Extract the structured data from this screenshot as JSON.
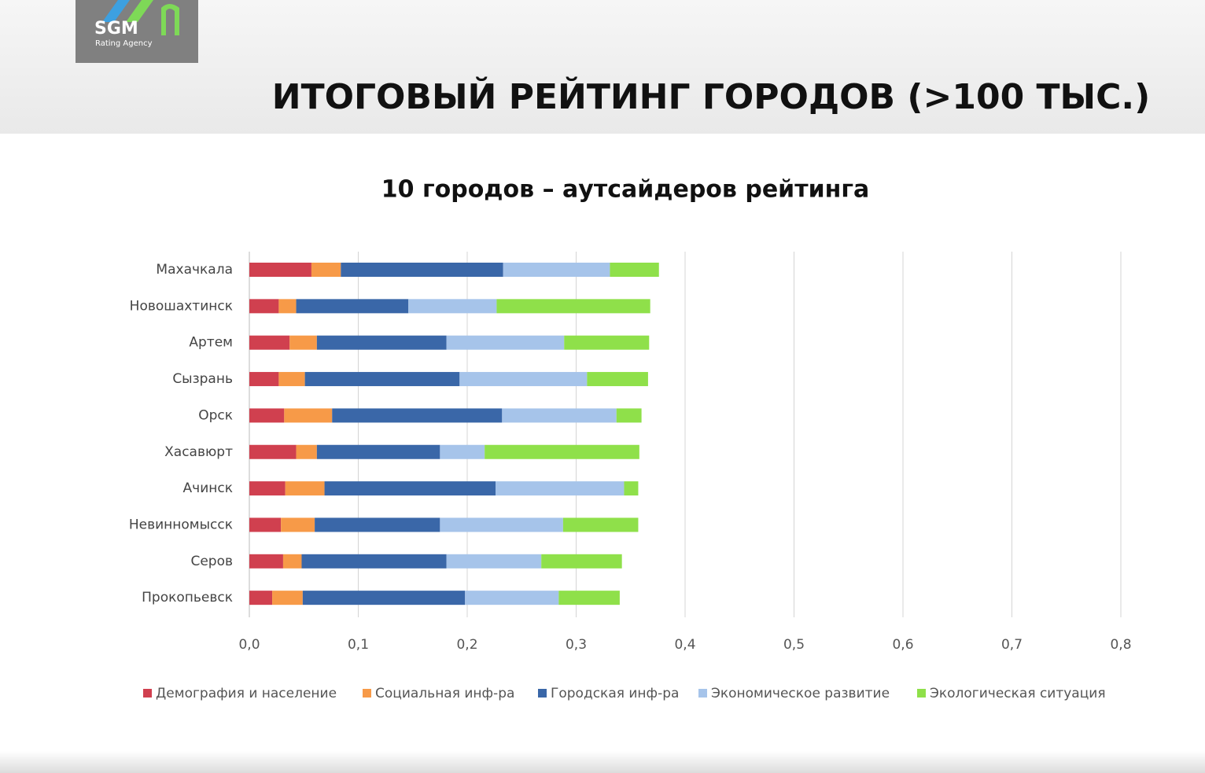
{
  "slide": {
    "logo": "SGM",
    "logo_sub": "Rating Agency",
    "title": "ИТОГОВЫЙ РЕЙТИНГ ГОРОДОВ (>100 ТЫС.)"
  },
  "chart_data": {
    "type": "stacked_barh",
    "title": "10 городов – аутсайдеров рейтинга",
    "categories": [
      "Махачкала",
      "Новошахтинск",
      "Артем",
      "Сызрань",
      "Орск",
      "Хасавюрт",
      "Ачинск",
      "Невинномысск",
      "Серов",
      "Прокопьевск"
    ],
    "series": [
      {
        "name": "Демография и население",
        "color": "#d0404f",
        "values": [
          0.057,
          0.027,
          0.037,
          0.027,
          0.032,
          0.043,
          0.033,
          0.029,
          0.031,
          0.021
        ]
      },
      {
        "name": "Социальная инф-ра",
        "color": "#f79a48",
        "values": [
          0.027,
          0.016,
          0.025,
          0.024,
          0.044,
          0.019,
          0.036,
          0.031,
          0.017,
          0.028
        ]
      },
      {
        "name": "Городская инф-ра",
        "color": "#3a67a8",
        "values": [
          0.149,
          0.103,
          0.119,
          0.142,
          0.156,
          0.113,
          0.157,
          0.115,
          0.133,
          0.149
        ]
      },
      {
        "name": "Экономическое развитие",
        "color": "#a6c4ea",
        "values": [
          0.098,
          0.081,
          0.108,
          0.117,
          0.105,
          0.041,
          0.118,
          0.113,
          0.087,
          0.086
        ]
      },
      {
        "name": "Экологическая ситуация",
        "color": "#8fe04a",
        "values": [
          0.045,
          0.141,
          0.078,
          0.056,
          0.023,
          0.142,
          0.013,
          0.069,
          0.074,
          0.056
        ]
      }
    ],
    "xlim": [
      0,
      0.8
    ],
    "xticks": [
      {
        "value": 0,
        "label": "0,0"
      },
      {
        "value": 0.1,
        "label": "0,1"
      },
      {
        "value": 0.2,
        "label": "0,2"
      },
      {
        "value": 0.3,
        "label": "0,3"
      },
      {
        "value": 0.4,
        "label": "0,4"
      },
      {
        "value": 0.5,
        "label": "0,5"
      },
      {
        "value": 0.6,
        "label": "0,6"
      },
      {
        "value": 0.7,
        "label": "0,7"
      },
      {
        "value": 0.8,
        "label": "0,8"
      }
    ],
    "grid": true,
    "legend": "bottom"
  }
}
